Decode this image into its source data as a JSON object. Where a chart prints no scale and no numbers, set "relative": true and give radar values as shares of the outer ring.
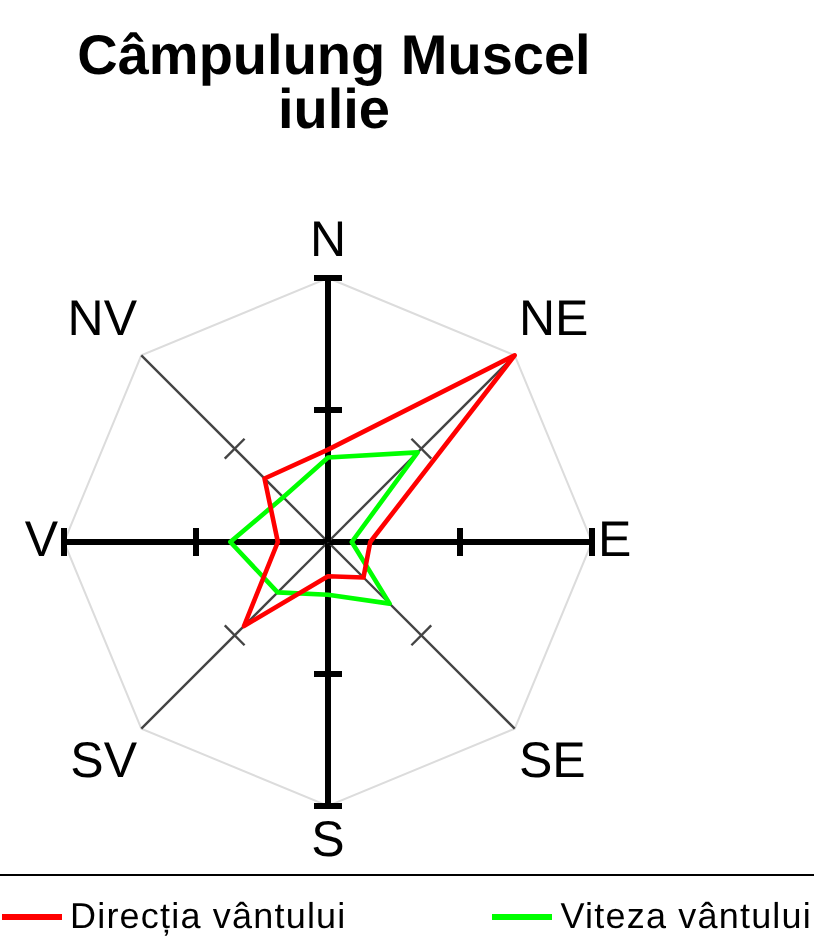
{
  "chart_data": {
    "type": "radar",
    "title": "Câmpulung Muscel",
    "subtitle": "iulie",
    "categories": [
      "N",
      "NE",
      "E",
      "SE",
      "S",
      "SV",
      "V",
      "NV"
    ],
    "relative": true,
    "series": [
      {
        "name": "Direcția vântului",
        "color": "#ff0000",
        "values": [
          0.35,
          1,
          0.16,
          0.19,
          0.13,
          0.45,
          0.19,
          0.34
        ]
      },
      {
        "name": "Viteza vântului",
        "color": "#00ff00",
        "values": [
          0.32,
          0.48,
          0.09,
          0.33,
          0.2,
          0.27,
          0.37,
          0.24
        ]
      }
    ],
    "legend": "bottom",
    "marker": "none",
    "grid": true
  }
}
